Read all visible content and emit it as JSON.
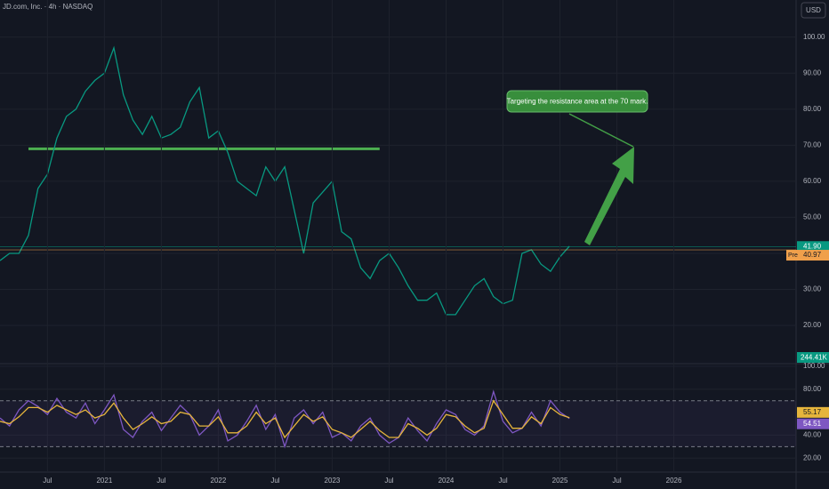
{
  "chart_data": [
    {
      "type": "line",
      "title": "JD.com, Inc. · 4h · NASDAQ",
      "currency": "USD",
      "x": [
        "2020-02",
        "2020-03",
        "2020-04",
        "2020-05",
        "2020-06",
        "2020-07",
        "2020-08",
        "2020-09",
        "2020-10",
        "2020-11",
        "2020-12",
        "2021-01",
        "2021-02",
        "2021-03",
        "2021-04",
        "2021-05",
        "2021-06",
        "2021-07",
        "2021-08",
        "2021-09",
        "2021-10",
        "2021-11",
        "2021-12",
        "2022-01",
        "2022-02",
        "2022-03",
        "2022-04",
        "2022-05",
        "2022-06",
        "2022-07",
        "2022-08",
        "2022-09",
        "2022-10",
        "2022-11",
        "2022-12",
        "2023-01",
        "2023-02",
        "2023-03",
        "2023-04",
        "2023-05",
        "2023-06",
        "2023-07",
        "2023-08",
        "2023-09",
        "2023-10",
        "2023-11",
        "2023-12",
        "2024-01",
        "2024-02",
        "2024-03",
        "2024-04",
        "2024-05",
        "2024-06",
        "2024-07",
        "2024-08",
        "2024-09",
        "2024-10",
        "2024-11",
        "2024-12",
        "2025-01",
        "2025-02"
      ],
      "series": [
        {
          "color": "#089981",
          "values": [
            38,
            40,
            40,
            45,
            58,
            62,
            72,
            78,
            80,
            85,
            88,
            90,
            97,
            84,
            77,
            73,
            78,
            72,
            73,
            75,
            82,
            86,
            72,
            74,
            68,
            60,
            58,
            56,
            64,
            60,
            64,
            52,
            40,
            54,
            57,
            60,
            46,
            44,
            36,
            33,
            38,
            40,
            36,
            31,
            27,
            27,
            29,
            23,
            23,
            27,
            31,
            33,
            28,
            26,
            27,
            40,
            41,
            37,
            35,
            39,
            42
          ]
        }
      ],
      "ylim": [
        9.4,
        110.3
      ],
      "yticks": [
        {
          "value": 20,
          "label": "20.00"
        },
        {
          "value": 30,
          "label": "30.00"
        },
        {
          "value": 40,
          "label": "40.00"
        },
        {
          "value": 50,
          "label": "50.00"
        },
        {
          "value": 60,
          "label": "60.00"
        },
        {
          "value": 70,
          "label": "70.00"
        },
        {
          "value": 80,
          "label": "80.00"
        },
        {
          "value": 90,
          "label": "90.00"
        },
        {
          "value": 100,
          "label": "100.00"
        }
      ],
      "grid": true,
      "resistance": {
        "value": 69,
        "from": "2020-05",
        "to": "2023-06",
        "color": "#4caf50"
      },
      "annotation": "Targeting the resistance area at the 70 mark.",
      "last_price": {
        "value": 41.9,
        "label": "41.90",
        "color": "#089981"
      },
      "pre_market": {
        "tag": "Pre",
        "value": 40.97,
        "label": "40.97",
        "color": "#f0a04b"
      },
      "volume_label": "244.41K"
    },
    {
      "type": "line",
      "x": [
        "2020-02",
        "2020-03",
        "2020-04",
        "2020-05",
        "2020-06",
        "2020-07",
        "2020-08",
        "2020-09",
        "2020-10",
        "2020-11",
        "2020-12",
        "2021-01",
        "2021-02",
        "2021-03",
        "2021-04",
        "2021-05",
        "2021-06",
        "2021-07",
        "2021-08",
        "2021-09",
        "2021-10",
        "2021-11",
        "2021-12",
        "2022-01",
        "2022-02",
        "2022-03",
        "2022-04",
        "2022-05",
        "2022-06",
        "2022-07",
        "2022-08",
        "2022-09",
        "2022-10",
        "2022-11",
        "2022-12",
        "2023-01",
        "2023-02",
        "2023-03",
        "2023-04",
        "2023-05",
        "2023-06",
        "2023-07",
        "2023-08",
        "2023-09",
        "2023-10",
        "2023-11",
        "2023-12",
        "2024-01",
        "2024-02",
        "2024-03",
        "2024-04",
        "2024-05",
        "2024-06",
        "2024-07",
        "2024-08",
        "2024-09",
        "2024-10",
        "2024-11",
        "2024-12",
        "2025-01",
        "2025-02"
      ],
      "series": [
        {
          "color": "#7e57c2",
          "values": [
            55,
            48,
            62,
            70,
            65,
            58,
            72,
            60,
            55,
            68,
            50,
            62,
            75,
            45,
            38,
            52,
            60,
            44,
            55,
            66,
            58,
            40,
            48,
            62,
            35,
            40,
            52,
            66,
            45,
            58,
            30,
            55,
            62,
            50,
            60,
            38,
            42,
            35,
            48,
            55,
            40,
            33,
            38,
            55,
            44,
            35,
            50,
            62,
            58,
            45,
            40,
            48,
            78,
            52,
            42,
            46,
            60,
            48,
            70,
            60,
            54.51
          ],
          "label": "54.51"
        },
        {
          "color": "#e6b53c",
          "values": [
            52,
            50,
            56,
            64,
            64,
            60,
            66,
            62,
            58,
            62,
            55,
            58,
            68,
            55,
            45,
            50,
            56,
            50,
            52,
            60,
            58,
            48,
            48,
            56,
            42,
            42,
            48,
            60,
            50,
            55,
            38,
            48,
            58,
            52,
            56,
            45,
            42,
            38,
            45,
            52,
            44,
            38,
            38,
            50,
            46,
            40,
            46,
            58,
            56,
            48,
            42,
            46,
            70,
            58,
            46,
            46,
            56,
            50,
            64,
            58,
            55.17
          ],
          "label": "55.17"
        }
      ],
      "ylim": [
        7.8,
        102.3
      ],
      "yticks": [
        {
          "value": 20,
          "label": "20.00"
        },
        {
          "value": 40,
          "label": "40.00"
        },
        {
          "value": 80,
          "label": "80.00"
        },
        {
          "value": 100,
          "label": "100.00"
        }
      ],
      "bands": [
        30,
        70
      ],
      "xticks": [
        {
          "value": "2020-07",
          "label": "Jul"
        },
        {
          "value": "2021-01",
          "label": "2021"
        },
        {
          "value": "2021-07",
          "label": "Jul"
        },
        {
          "value": "2022-01",
          "label": "2022"
        },
        {
          "value": "2022-07",
          "label": "Jul"
        },
        {
          "value": "2023-01",
          "label": "2023"
        },
        {
          "value": "2023-07",
          "label": "Jul"
        },
        {
          "value": "2024-01",
          "label": "2024"
        },
        {
          "value": "2024-07",
          "label": "Jul"
        },
        {
          "value": "2025-01",
          "label": "2025"
        },
        {
          "value": "2025-07",
          "label": "Jul"
        },
        {
          "value": "2026-01",
          "label": "2026"
        }
      ]
    }
  ]
}
